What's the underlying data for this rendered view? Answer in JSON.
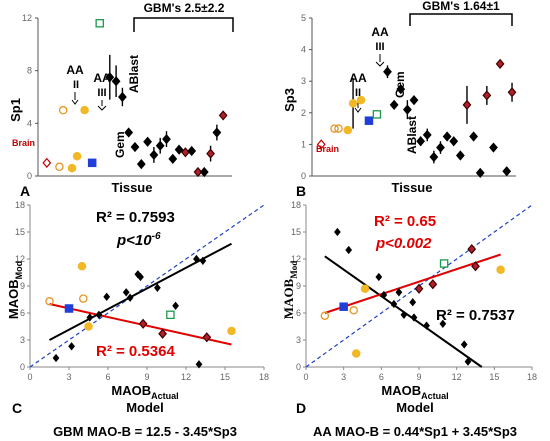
{
  "chart_data": [
    {
      "panel": "A",
      "type": "scatter",
      "xlabel": "Tissue",
      "ylabel": "Sp1",
      "ylim": [
        0,
        12
      ],
      "yticks": [
        0,
        4,
        8,
        12
      ],
      "bracket_label": "GBM's 2.5±2.2",
      "annotations": [
        "Brain",
        "AA",
        "II",
        "AA",
        "III",
        "Gem",
        "ABlast"
      ],
      "points": [
        {
          "x": 1,
          "y": 1.0,
          "err": 0,
          "group": "brain"
        },
        {
          "x": 2,
          "y": 0.7,
          "err": 0,
          "group": "aa2"
        },
        {
          "x": 2.3,
          "y": 5.0,
          "err": 0,
          "group": "aa2"
        },
        {
          "x": 3,
          "y": 0.6,
          "err": 0,
          "group": "aa3"
        },
        {
          "x": 3.4,
          "y": 1.5,
          "err": 0,
          "group": "aa3"
        },
        {
          "x": 4,
          "y": 5.0,
          "err": 0,
          "group": "aa3"
        },
        {
          "x": 4.6,
          "y": 1.0,
          "err": 0,
          "group": "gem"
        },
        {
          "x": 5.2,
          "y": 11.6,
          "err": 0,
          "group": "ablast"
        },
        {
          "x": 6,
          "y": 7.5,
          "err": 1.7,
          "group": "gbm"
        },
        {
          "x": 6.5,
          "y": 7.2,
          "err": 1.2,
          "group": "gbm"
        },
        {
          "x": 7,
          "y": 6.0,
          "err": 0.7,
          "group": "gbm"
        },
        {
          "x": 7.5,
          "y": 3.3,
          "err": 0,
          "group": "gbm"
        },
        {
          "x": 8,
          "y": 2.2,
          "err": 0,
          "group": "gbm"
        },
        {
          "x": 8.5,
          "y": 0.9,
          "err": 0,
          "group": "gbm"
        },
        {
          "x": 9,
          "y": 2.6,
          "err": 0.3,
          "group": "gbm"
        },
        {
          "x": 9.5,
          "y": 1.6,
          "err": 0.6,
          "group": "gbm"
        },
        {
          "x": 10,
          "y": 2.3,
          "err": 0.6,
          "group": "gbm"
        },
        {
          "x": 10.5,
          "y": 2.8,
          "err": 0.6,
          "group": "gbm"
        },
        {
          "x": 11,
          "y": 1.3,
          "err": 0,
          "group": "gbm"
        },
        {
          "x": 11.5,
          "y": 2.0,
          "err": 0,
          "group": "gbm"
        },
        {
          "x": 12,
          "y": 1.8,
          "err": 0.3,
          "group": "gbm-red"
        },
        {
          "x": 12.5,
          "y": 1.9,
          "err": 0,
          "group": "gbm"
        },
        {
          "x": 13,
          "y": 0.3,
          "err": 0,
          "group": "gbm-red"
        },
        {
          "x": 13.5,
          "y": 0.3,
          "err": 0,
          "group": "gbm"
        },
        {
          "x": 14,
          "y": 1.7,
          "err": 0.6,
          "group": "gbm-red"
        },
        {
          "x": 14.5,
          "y": 3.3,
          "err": 0.6,
          "group": "gbm"
        },
        {
          "x": 15,
          "y": 4.6,
          "err": 0,
          "group": "gbm-red"
        }
      ]
    },
    {
      "panel": "B",
      "type": "scatter",
      "xlabel": "Tissue",
      "ylabel": "Sp3",
      "ylim": [
        0,
        5
      ],
      "yticks": [
        0,
        1,
        2,
        3,
        4,
        5
      ],
      "bracket_label": "GBM's 1.64±1",
      "annotations": [
        "Brain",
        "AA",
        "II",
        "AA",
        "III",
        "Gem",
        "ABlast"
      ],
      "points": [
        {
          "x": 1,
          "y": 1.0,
          "err": 0,
          "group": "brain"
        },
        {
          "x": 2,
          "y": 1.5,
          "err": 0,
          "group": "aa2"
        },
        {
          "x": 2.3,
          "y": 1.5,
          "err": 0,
          "group": "aa2"
        },
        {
          "x": 3,
          "y": 1.45,
          "err": 0,
          "group": "aa3"
        },
        {
          "x": 3.4,
          "y": 2.3,
          "err": 0.8,
          "group": "aa3"
        },
        {
          "x": 4,
          "y": 2.4,
          "err": 0,
          "group": "aa3"
        },
        {
          "x": 4.6,
          "y": 1.75,
          "err": 0,
          "group": "gem"
        },
        {
          "x": 5.2,
          "y": 1.95,
          "err": 0,
          "group": "ablast"
        },
        {
          "x": 6,
          "y": 3.3,
          "err": 0.2,
          "group": "gbm"
        },
        {
          "x": 6.5,
          "y": 2.25,
          "err": 0,
          "group": "gbm"
        },
        {
          "x": 7,
          "y": 2.75,
          "err": 0.1,
          "group": "gbm"
        },
        {
          "x": 7.5,
          "y": 2.1,
          "err": 0.3,
          "group": "gbm"
        },
        {
          "x": 8,
          "y": 2.4,
          "err": 0,
          "group": "gbm"
        },
        {
          "x": 8.5,
          "y": 1.1,
          "err": 0.15,
          "group": "gbm"
        },
        {
          "x": 9,
          "y": 1.3,
          "err": 0.2,
          "group": "gbm"
        },
        {
          "x": 9.5,
          "y": 0.6,
          "err": 0.2,
          "group": "gbm"
        },
        {
          "x": 10,
          "y": 0.9,
          "err": 0.2,
          "group": "gbm"
        },
        {
          "x": 10.5,
          "y": 1.25,
          "err": 0,
          "group": "gbm"
        },
        {
          "x": 11,
          "y": 1.1,
          "err": 0,
          "group": "gbm"
        },
        {
          "x": 11.5,
          "y": 0.65,
          "err": 0,
          "group": "gbm"
        },
        {
          "x": 12,
          "y": 2.25,
          "err": 0.6,
          "group": "gbm-red"
        },
        {
          "x": 12.5,
          "y": 1.25,
          "err": 0,
          "group": "gbm"
        },
        {
          "x": 13,
          "y": 0.1,
          "err": 0,
          "group": "gbm"
        },
        {
          "x": 13.5,
          "y": 2.55,
          "err": 0.3,
          "group": "gbm-red"
        },
        {
          "x": 14,
          "y": 0.9,
          "err": 0,
          "group": "gbm"
        },
        {
          "x": 14.5,
          "y": 3.55,
          "err": 0.1,
          "group": "gbm-red"
        },
        {
          "x": 15,
          "y": 0.15,
          "err": 0,
          "group": "gbm"
        },
        {
          "x": 15.4,
          "y": 2.65,
          "err": 0.3,
          "group": "gbm-red"
        }
      ]
    },
    {
      "panel": "C",
      "type": "scatter",
      "xlabel": "MAOB",
      "xlabel_sub": "Actual",
      "xlabel2": "Model",
      "ylabel": "MAOB",
      "ylabel_sub": "Mod",
      "xlim": [
        0,
        18
      ],
      "ylim": [
        0,
        18
      ],
      "xticks": [
        0,
        3,
        6,
        9,
        12,
        15,
        18
      ],
      "yticks": [
        0,
        3,
        6,
        9,
        12,
        15,
        18
      ],
      "annotations": {
        "r2_black": "R² = 0.7593",
        "p_black": "p<10",
        "p_exp": "-6",
        "r2_red": "R² = 0.5364"
      },
      "formula": "GBM MAO-B = 12.5 - 3.45*Sp3",
      "fit_black": {
        "x": [
          1.5,
          15.5
        ],
        "y": [
          3.0,
          13.7
        ]
      },
      "fit_red": {
        "x": [
          1.5,
          15.5
        ],
        "y": [
          7.0,
          2.5
        ]
      },
      "identity": {
        "x": [
          0,
          18
        ],
        "y": [
          0,
          18
        ]
      },
      "points": [
        {
          "x": 1.5,
          "y": 7.3,
          "group": "aa2"
        },
        {
          "x": 4.1,
          "y": 7.6,
          "group": "aa2"
        },
        {
          "x": 3.0,
          "y": 6.5,
          "group": "gem"
        },
        {
          "x": 4.0,
          "y": 11.2,
          "group": "aa3"
        },
        {
          "x": 4.5,
          "y": 4.5,
          "group": "aa3"
        },
        {
          "x": 15.5,
          "y": 4.0,
          "group": "aa3"
        },
        {
          "x": 10.8,
          "y": 5.8,
          "group": "ablast"
        },
        {
          "x": 8.7,
          "y": 4.8,
          "group": "gbm-red"
        },
        {
          "x": 10.2,
          "y": 3.7,
          "group": "gbm-red"
        },
        {
          "x": 13.6,
          "y": 3.3,
          "group": "gbm-red"
        },
        {
          "x": 2.0,
          "y": 1.0,
          "group": "gbm"
        },
        {
          "x": 3.2,
          "y": 2.3,
          "group": "gbm"
        },
        {
          "x": 4.6,
          "y": 5.5,
          "group": "gbm"
        },
        {
          "x": 5.3,
          "y": 5.8,
          "group": "gbm"
        },
        {
          "x": 5.9,
          "y": 7.8,
          "group": "gbm"
        },
        {
          "x": 7.4,
          "y": 8.3,
          "group": "gbm"
        },
        {
          "x": 7.7,
          "y": 7.7,
          "group": "gbm"
        },
        {
          "x": 8.3,
          "y": 10.3,
          "group": "gbm"
        },
        {
          "x": 8.5,
          "y": 10.0,
          "group": "gbm"
        },
        {
          "x": 9.8,
          "y": 8.8,
          "group": "gbm"
        },
        {
          "x": 11.2,
          "y": 6.8,
          "group": "gbm"
        },
        {
          "x": 12.8,
          "y": 12.0,
          "group": "gbm"
        },
        {
          "x": 13.3,
          "y": 11.8,
          "group": "gbm"
        },
        {
          "x": 13.0,
          "y": 0.3,
          "group": "gbm"
        }
      ]
    },
    {
      "panel": "D",
      "type": "scatter",
      "xlabel": "MAOB",
      "xlabel_sub": "Actual",
      "xlabel2": "Model",
      "ylabel": "MAOB",
      "ylabel_sub": "Mod",
      "xlim": [
        0,
        18
      ],
      "ylim": [
        0,
        18
      ],
      "xticks": [
        0,
        3,
        6,
        9,
        12,
        15,
        18
      ],
      "yticks": [
        0,
        3,
        6,
        9,
        12,
        15,
        18
      ],
      "annotations": {
        "r2_red": "R² = 0.65",
        "p_red": "p<0.002",
        "r2_black": "R² = 0.7537"
      },
      "formula": "AA MAO-B = 0.44*Sp1 + 3.45*Sp3",
      "fit_black": {
        "x": [
          1.5,
          14.0
        ],
        "y": [
          12.3,
          0.0
        ]
      },
      "fit_red": {
        "x": [
          1.5,
          15.5
        ],
        "y": [
          6.0,
          12.5
        ]
      },
      "identity": {
        "x": [
          0,
          18
        ],
        "y": [
          0,
          18
        ]
      },
      "points": [
        {
          "x": 1.5,
          "y": 5.7,
          "group": "aa2"
        },
        {
          "x": 3.8,
          "y": 6.3,
          "group": "aa2"
        },
        {
          "x": 3.0,
          "y": 6.7,
          "group": "gem"
        },
        {
          "x": 4.0,
          "y": 1.5,
          "group": "aa3"
        },
        {
          "x": 4.7,
          "y": 8.7,
          "group": "aa3"
        },
        {
          "x": 15.5,
          "y": 10.8,
          "group": "aa3"
        },
        {
          "x": 11.0,
          "y": 11.5,
          "group": "ablast"
        },
        {
          "x": 9.0,
          "y": 8.7,
          "group": "gbm-red"
        },
        {
          "x": 10.1,
          "y": 9.2,
          "group": "gbm-red"
        },
        {
          "x": 13.5,
          "y": 11.2,
          "group": "gbm-red"
        },
        {
          "x": 13.2,
          "y": 13.1,
          "group": "gbm-red"
        },
        {
          "x": 2.5,
          "y": 15.0,
          "group": "gbm"
        },
        {
          "x": 3.4,
          "y": 13.0,
          "group": "gbm"
        },
        {
          "x": 5.8,
          "y": 10.0,
          "group": "gbm"
        },
        {
          "x": 6.2,
          "y": 8.0,
          "group": "gbm"
        },
        {
          "x": 7.0,
          "y": 7.0,
          "group": "gbm"
        },
        {
          "x": 7.4,
          "y": 8.3,
          "group": "gbm"
        },
        {
          "x": 7.8,
          "y": 5.8,
          "group": "gbm"
        },
        {
          "x": 8.6,
          "y": 5.5,
          "group": "gbm"
        },
        {
          "x": 9.6,
          "y": 4.6,
          "group": "gbm"
        },
        {
          "x": 10.9,
          "y": 4.8,
          "group": "gbm"
        },
        {
          "x": 12.6,
          "y": 2.5,
          "group": "gbm"
        },
        {
          "x": 12.9,
          "y": 0.6,
          "group": "gbm"
        },
        {
          "x": 8.5,
          "y": 7.2,
          "group": "gbm"
        }
      ]
    }
  ],
  "colors": {
    "black": "#000000",
    "red": "#c00000",
    "orange": "#e69520",
    "yellow": "#f2b825",
    "blue": "#1f3fd8",
    "green": "#1a9a4a",
    "dashed": "#2040c8",
    "fit_red": "#e00000",
    "gbm_red_fill": "#b0202a"
  }
}
